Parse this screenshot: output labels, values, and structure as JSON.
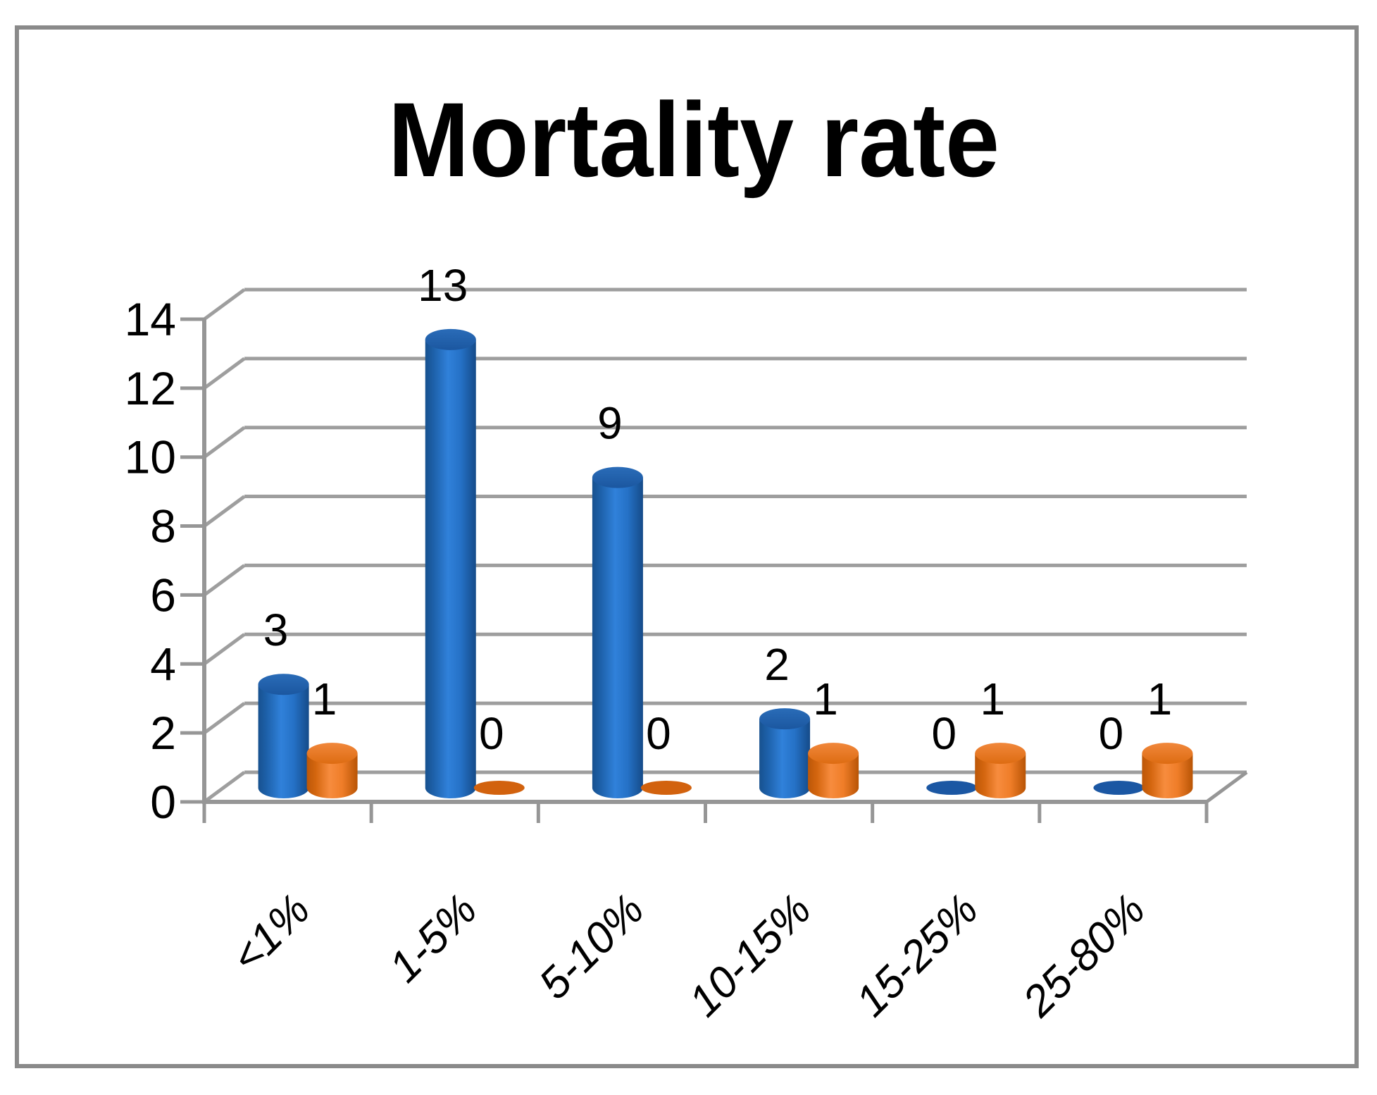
{
  "chart_data": {
    "type": "bar",
    "subtype": "3d-cylinder",
    "title": "Mortality rate",
    "categories": [
      "<1%",
      "1-5%",
      "5-10%",
      "10-15%",
      "15-25%",
      "25-80%"
    ],
    "series": [
      {
        "name": "series-1-blue",
        "color": "#2A74CB",
        "values": [
          3,
          13,
          9,
          2,
          0,
          0
        ]
      },
      {
        "name": "series-2-orange",
        "color": "#F07E28",
        "values": [
          1,
          0,
          0,
          1,
          1,
          1
        ]
      }
    ],
    "data_labels": {
      "series-1-blue": [
        "3",
        "13",
        "9",
        "2",
        "0",
        "0"
      ],
      "series-2-orange": [
        "1",
        "0",
        "0",
        "1",
        "1",
        "1"
      ]
    },
    "yticks": [
      0,
      2,
      4,
      6,
      8,
      10,
      12,
      14
    ],
    "ytick_labels": [
      "0",
      "2",
      "4",
      "6",
      "8",
      "10",
      "12",
      "14"
    ],
    "ylim": [
      0,
      14
    ],
    "xlabel": "",
    "ylabel": "",
    "legend": "none",
    "grid": true,
    "category_label_style": "italic-rotated-45"
  },
  "colors": {
    "series1_blue": "#2A74CB",
    "series2_orange": "#F07E28",
    "gridline": "#9E9E9E",
    "axis": "#969696",
    "border": "#8A8A8A",
    "text": "#000000",
    "background": "#FFFFFF"
  }
}
